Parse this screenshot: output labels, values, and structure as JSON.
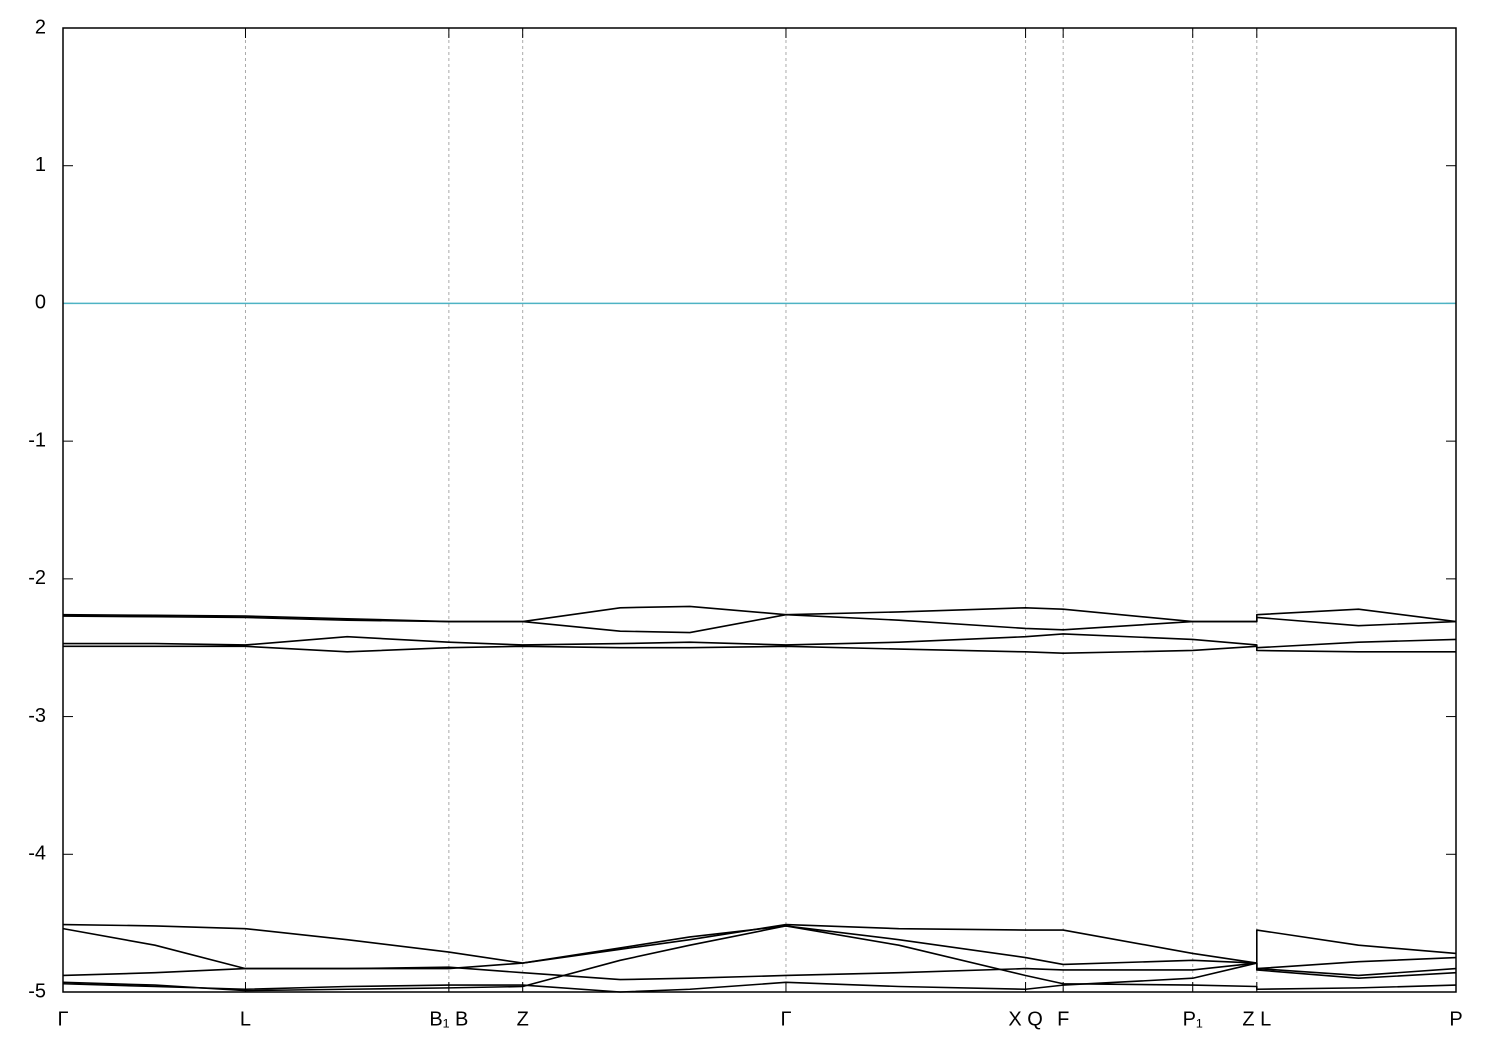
{
  "chart_data": {
    "type": "line",
    "x": [
      0,
      0.066,
      0.131,
      0.204,
      0.277,
      0.33,
      0.4,
      0.45,
      0.519,
      0.6,
      0.691,
      0.718,
      0.811,
      0.857,
      0.857,
      0.93,
      1.0
    ],
    "series": [
      {
        "color": "#000000",
        "values": [
          -2.26,
          -2.265,
          -2.27,
          -2.29,
          -2.31,
          -2.31,
          -2.21,
          -2.2,
          -2.26,
          -2.24,
          -2.21,
          -2.22,
          -2.31,
          -2.31,
          -2.26,
          -2.22,
          -2.31
        ]
      },
      {
        "color": "#000000",
        "values": [
          -2.27,
          -2.275,
          -2.28,
          -2.3,
          -2.31,
          -2.31,
          -2.38,
          -2.39,
          -2.26,
          -2.3,
          -2.36,
          -2.37,
          -2.31,
          -2.31,
          -2.28,
          -2.34,
          -2.31
        ]
      },
      {
        "color": "#000000",
        "values": [
          -2.47,
          -2.47,
          -2.48,
          -2.42,
          -2.46,
          -2.48,
          -2.47,
          -2.46,
          -2.48,
          -2.46,
          -2.42,
          -2.4,
          -2.44,
          -2.48,
          -2.5,
          -2.46,
          -2.44
        ]
      },
      {
        "color": "#000000",
        "values": [
          -2.49,
          -2.49,
          -2.49,
          -2.53,
          -2.5,
          -2.49,
          -2.5,
          -2.5,
          -2.49,
          -2.51,
          -2.53,
          -2.54,
          -2.52,
          -2.49,
          -2.52,
          -2.53,
          -2.53
        ]
      },
      {
        "color": "#000000",
        "values": [
          -4.51,
          -4.52,
          -4.54,
          -4.62,
          -4.71,
          -4.79,
          -4.69,
          -4.62,
          -4.51,
          -4.54,
          -4.55,
          -4.55,
          -4.72,
          -4.79,
          -4.55,
          -4.66,
          -4.72
        ]
      },
      {
        "color": "#000000",
        "values": [
          -4.54,
          -4.66,
          -4.83,
          -4.83,
          -4.83,
          -4.79,
          -4.68,
          -4.6,
          -4.52,
          -4.62,
          -4.75,
          -4.8,
          -4.77,
          -4.79,
          -4.83,
          -4.78,
          -4.75
        ]
      },
      {
        "color": "#000000",
        "values": [
          -4.88,
          -4.86,
          -4.83,
          -4.83,
          -4.82,
          -4.86,
          -4.91,
          -4.9,
          -4.88,
          -4.86,
          -4.83,
          -4.84,
          -4.84,
          -4.79,
          -4.83,
          -4.88,
          -4.83
        ]
      },
      {
        "color": "#000000",
        "values": [
          -4.93,
          -4.95,
          -4.99,
          -4.98,
          -4.97,
          -4.96,
          -4.77,
          -4.66,
          -4.52,
          -4.66,
          -4.88,
          -4.94,
          -4.95,
          -4.96,
          -4.98,
          -4.97,
          -4.95
        ]
      },
      {
        "color": "#000000",
        "values": [
          -4.94,
          -4.96,
          -4.98,
          -4.96,
          -4.95,
          -4.95,
          -5.0,
          -4.98,
          -4.93,
          -4.96,
          -4.98,
          -4.95,
          -4.9,
          -4.79,
          -4.84,
          -4.9,
          -4.86
        ]
      }
    ],
    "hline": {
      "value": 0,
      "color": "#4eb3c4"
    },
    "xlim": [
      0,
      1
    ],
    "xticks": [
      {
        "value": 0,
        "label": "Γ"
      },
      {
        "value": 0.131,
        "label": "L"
      },
      {
        "value": 0.277,
        "label": "B₁ B"
      },
      {
        "value": 0.33,
        "label": "Z"
      },
      {
        "value": 0.519,
        "label": "Γ"
      },
      {
        "value": 0.691,
        "label": "X Q"
      },
      {
        "value": 0.718,
        "label": "F"
      },
      {
        "value": 0.811,
        "label": "P₁"
      },
      {
        "value": 0.857,
        "label": "Z L"
      },
      {
        "value": 1,
        "label": "P"
      }
    ],
    "ylim": [
      -5,
      2
    ],
    "yticks": [
      -5,
      -4,
      -3,
      -2,
      -1,
      0,
      1,
      2
    ],
    "grid": true
  }
}
